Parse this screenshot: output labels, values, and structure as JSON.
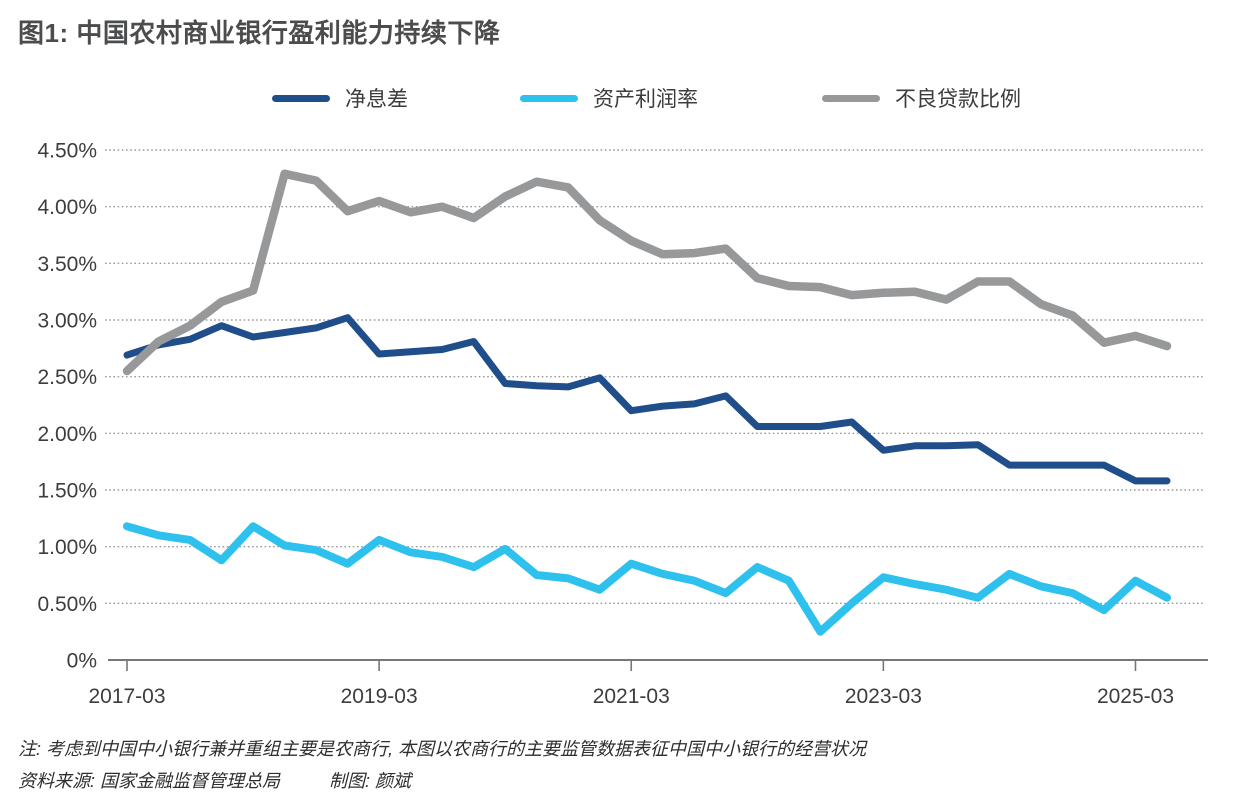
{
  "title": "图1: 中国农村商业银行盈利能力持续下降",
  "chart_data": {
    "type": "line",
    "title": "图1: 中国农村商业银行盈利能力持续下降",
    "x": [
      "2017-03",
      "2017-06",
      "2017-09",
      "2017-12",
      "2018-03",
      "2018-06",
      "2018-09",
      "2018-12",
      "2019-03",
      "2019-06",
      "2019-09",
      "2019-12",
      "2020-03",
      "2020-06",
      "2020-09",
      "2020-12",
      "2021-03",
      "2021-06",
      "2021-09",
      "2021-12",
      "2022-03",
      "2022-06",
      "2022-09",
      "2022-12",
      "2023-03",
      "2023-06",
      "2023-09",
      "2023-12",
      "2024-03",
      "2024-06",
      "2024-09",
      "2024-12",
      "2025-03",
      "2025-06"
    ],
    "x_tick_labels": [
      "2017-03",
      "2019-03",
      "2021-03",
      "2023-03",
      "2025-03"
    ],
    "x_tick_indices": [
      0,
      8,
      16,
      24,
      32
    ],
    "y_tick_labels": [
      "0%",
      "0.50%",
      "1.00%",
      "1.50%",
      "2.00%",
      "2.50%",
      "3.00%",
      "3.50%",
      "4.00%",
      "4.50%"
    ],
    "ylim": [
      0,
      4.5
    ],
    "y_step": 0.5,
    "unit": "percent",
    "grid": "dotted-horizontal",
    "legend_position": "top",
    "series": [
      {
        "name": "净息差",
        "color": "#1f4e8a",
        "values": [
          2.69,
          2.78,
          2.83,
          2.95,
          2.85,
          2.89,
          2.93,
          3.02,
          2.7,
          2.72,
          2.74,
          2.81,
          2.44,
          2.42,
          2.41,
          2.49,
          2.2,
          2.24,
          2.26,
          2.33,
          2.06,
          2.06,
          2.06,
          2.1,
          1.85,
          1.89,
          1.89,
          1.9,
          1.72,
          1.72,
          1.72,
          1.72,
          1.58,
          1.58
        ]
      },
      {
        "name": "资产利润率",
        "color": "#2fc1ee",
        "values": [
          1.18,
          1.1,
          1.06,
          0.88,
          1.18,
          1.01,
          0.97,
          0.85,
          1.06,
          0.95,
          0.91,
          0.82,
          0.98,
          0.75,
          0.72,
          0.62,
          0.85,
          0.76,
          0.7,
          0.59,
          0.82,
          0.7,
          0.25,
          0.5,
          0.73,
          0.67,
          0.62,
          0.55,
          0.76,
          0.65,
          0.59,
          0.44,
          0.7,
          0.55
        ]
      },
      {
        "name": "不良贷款比例",
        "color": "#97989a",
        "values": [
          2.55,
          2.81,
          2.95,
          3.16,
          3.26,
          4.29,
          4.23,
          3.96,
          4.05,
          3.95,
          4.0,
          3.9,
          4.09,
          4.22,
          4.17,
          3.88,
          3.7,
          3.58,
          3.59,
          3.63,
          3.37,
          3.3,
          3.29,
          3.22,
          3.24,
          3.25,
          3.18,
          3.34,
          3.34,
          3.14,
          3.04,
          2.8,
          2.86,
          2.77
        ]
      }
    ],
    "colors": {
      "axis": "#777777",
      "grid": "#9a9a9a",
      "tick_text": "#3d3d3d"
    }
  },
  "notes": {
    "line1": "注: 考虑到中国中小银行兼并重组主要是农商行, 本图以农商行的主要监管数据表征中国中小银行的经营状况",
    "source": "资料来源: 国家金融监督管理总局",
    "credit": "制图: 颜斌"
  }
}
